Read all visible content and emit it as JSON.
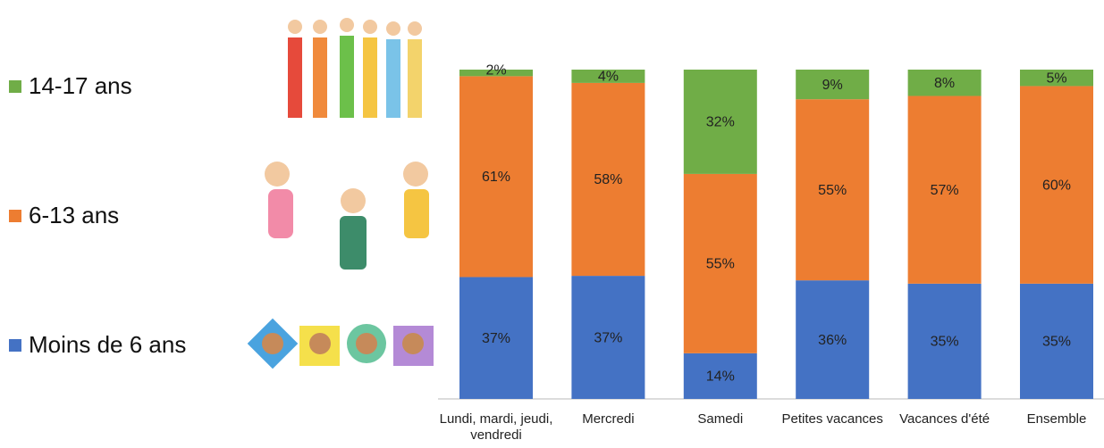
{
  "chart_data": {
    "type": "stacked-bar",
    "categories": [
      "Lundi, mardi, jeudi, vendredi",
      "Mercredi",
      "Samedi",
      "Petites vacances",
      "Vacances d'été",
      "Ensemble"
    ],
    "series": [
      {
        "name": "Moins de 6 ans",
        "color": "#4472c4",
        "values": [
          37,
          37,
          14,
          36,
          35,
          35
        ],
        "value_labels": [
          "37%",
          "37%",
          "14%",
          "36%",
          "35%",
          "35%"
        ]
      },
      {
        "name": "6-13 ans",
        "color": "#ed7d31",
        "values": [
          61,
          58,
          55,
          55,
          57,
          60
        ],
        "value_labels": [
          "61%",
          "58%",
          "55%",
          "55%",
          "57%",
          "60%"
        ]
      },
      {
        "name": "14-17 ans",
        "color": "#70ad47",
        "values": [
          2,
          4,
          32,
          9,
          8,
          5
        ],
        "value_labels": [
          "2%",
          "4%",
          "32%",
          "9%",
          "8%",
          "5%"
        ]
      }
    ]
  }
}
